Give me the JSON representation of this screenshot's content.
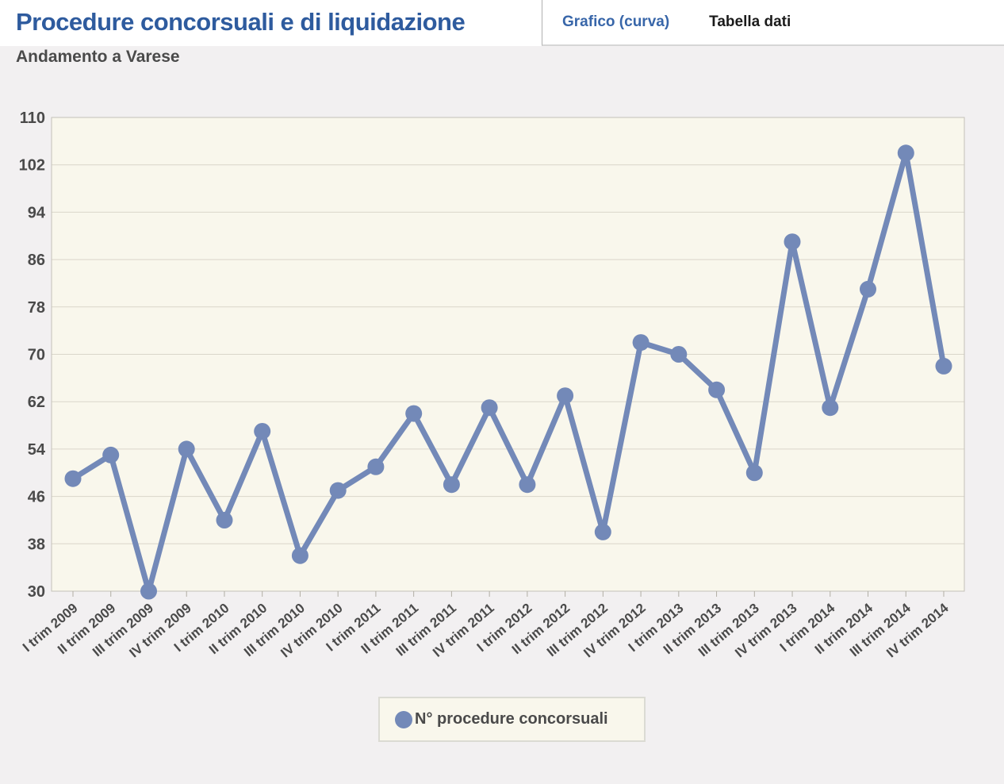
{
  "header": {
    "title": "Procedure concorsuali e di liquidazione",
    "subtitle": "Andamento a Varese"
  },
  "tabs": [
    {
      "label": "Grafico (curva)",
      "active": true
    },
    {
      "label": "Tabella dati",
      "active": false
    }
  ],
  "legend": {
    "label": "N° procedure concorsuali"
  },
  "colors": {
    "title_blue": "#2e5b9e",
    "tab_active_blue": "#3866a9",
    "tab_inactive": "#1b1b1b",
    "series_line": "#7389b8",
    "plot_background": "#f9f7ec",
    "gridline": "#dad6ca",
    "plot_border": "#c4c1b9",
    "axis_tick": "#b1aea4",
    "axis_label": "#4a4a4a",
    "page_background": "#f2f0f1"
  },
  "chart_data": {
    "type": "line",
    "title": "Procedure concorsuali e di liquidazione",
    "subtitle": "Andamento a Varese",
    "categories": [
      "I trim 2009",
      "II trim 2009",
      "III trim 2009",
      "IV trim 2009",
      "I trim 2010",
      "II trim 2010",
      "III trim 2010",
      "IV trim 2010",
      "I trim 2011",
      "II trim 2011",
      "III trim 2011",
      "IV trim 2011",
      "I trim 2012",
      "II trim 2012",
      "III trim 2012",
      "IV trim 2012",
      "I trim 2013",
      "II trim 2013",
      "III trim 2013",
      "IV trim 2013",
      "I trim 2014",
      "II trim 2014",
      "III trim 2014",
      "IV trim 2014"
    ],
    "series": [
      {
        "name": "N° procedure concorsuali",
        "values": [
          49,
          53,
          30,
          54,
          42,
          57,
          36,
          47,
          51,
          60,
          48,
          61,
          48,
          63,
          40,
          72,
          70,
          64,
          50,
          89,
          61,
          81,
          104,
          68
        ]
      }
    ],
    "xlabel": "",
    "ylabel": "",
    "ylim": [
      30,
      110
    ],
    "yticks": [
      30,
      38,
      46,
      54,
      62,
      70,
      78,
      86,
      94,
      102,
      110
    ],
    "grid": "horizontal",
    "legend_position": "bottom",
    "marker": "circle"
  }
}
